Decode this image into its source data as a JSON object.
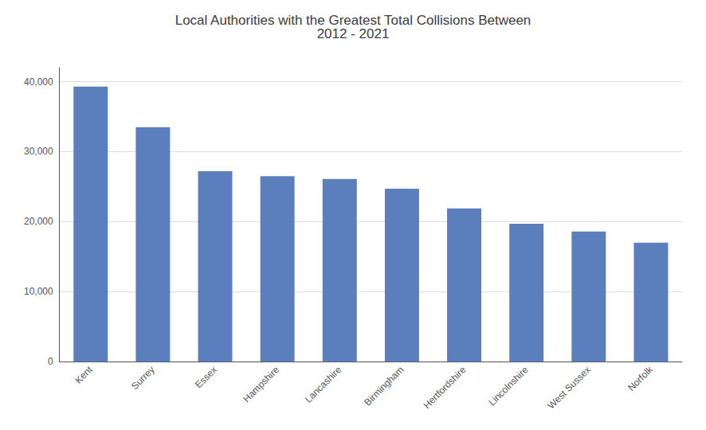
{
  "chart_data": {
    "type": "bar",
    "title": "Local Authorities with the Greatest Total Collisions Between\n2012 - 2021",
    "categories": [
      "Kent",
      "Surrey",
      "Essex",
      "Hampshire",
      "Lancashire",
      "Birmingham",
      "Hertfordshire",
      "Lincolnshire",
      "West Sussex",
      "Norfolk"
    ],
    "values": [
      39300,
      33500,
      27200,
      26500,
      26100,
      24700,
      21900,
      19700,
      18600,
      17000
    ],
    "color": "#5b7fbc",
    "ylim": [
      0,
      42000
    ],
    "yticks": [
      0,
      {
        "value": 10000,
        "label": "10,000"
      },
      {
        "value": 20000,
        "label": "20,000"
      },
      {
        "value": 30000,
        "label": "30,000"
      },
      {
        "value": 40000,
        "label": "40,000"
      }
    ],
    "grid": true
  }
}
